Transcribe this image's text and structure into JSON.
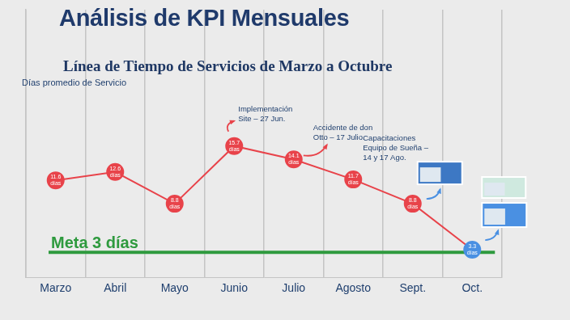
{
  "chart_data": {
    "type": "line",
    "title": "Análisis de KPI Mensuales",
    "subtitle": "Línea de Tiempo de Servicios de Marzo a Octubre",
    "ylabel": "Días promedio de Servicio",
    "categories": [
      "Marzo",
      "Abril",
      "Mayo",
      "Junio",
      "Julio",
      "Agosto",
      "Sept.",
      "Oct."
    ],
    "values": [
      11.6,
      12.6,
      8.8,
      15.7,
      14.1,
      11.7,
      8.8,
      3.3
    ],
    "value_labels": [
      "11.6 días",
      "12.6 días",
      "8.8 días",
      "15.7 días",
      "14.1 días",
      "11.7 días",
      "8.8 días",
      "3.3 días"
    ],
    "color": "#e8434a",
    "colors": [
      "#e8434a",
      "#e8434a",
      "#e8434a",
      "#e8434a",
      "#e8434a",
      "#e8434a",
      "#e8434a",
      "#4a90e2"
    ],
    "marker": "circle",
    "ylim": [
      0,
      32
    ],
    "tick_labels": "x",
    "grid": "x",
    "data_labels": true,
    "target": {
      "value": 3,
      "label": "Meta 3 días",
      "color": "#2e9a3e"
    },
    "annotations": [
      {
        "category": "Junio",
        "text": [
          "Implementación",
          "Site – 27 Jun."
        ]
      },
      {
        "category": "Julio",
        "text": [
          "Accidente de don",
          "Otto – 17 Julio."
        ]
      },
      {
        "category": "Agosto",
        "text": [
          "Capacitaciones",
          "Equipo de Sueña –",
          "14 y 17 Ago."
        ]
      }
    ]
  }
}
